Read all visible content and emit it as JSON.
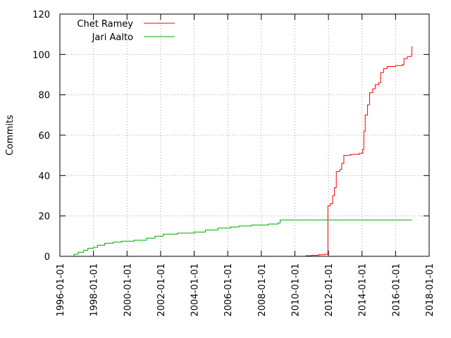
{
  "chart_data": {
    "type": "line",
    "title": "",
    "xlabel": "",
    "ylabel": "Commits",
    "x_type": "date",
    "xlim": [
      "1996-01-01",
      "2018-01-01"
    ],
    "ylim": [
      0,
      120
    ],
    "x_ticks": [
      "1996-01-01",
      "1998-01-01",
      "2000-01-01",
      "2002-01-01",
      "2004-01-01",
      "2006-01-01",
      "2008-01-01",
      "2010-01-01",
      "2012-01-01",
      "2014-01-01",
      "2016-01-01",
      "2018-01-01"
    ],
    "y_ticks": [
      0,
      20,
      40,
      60,
      80,
      100,
      120
    ],
    "grid": true,
    "legend_position": "top-left",
    "step": true,
    "series": [
      {
        "name": "Chet Ramey",
        "color": "#ff0000",
        "points": [
          [
            "2009-09-15",
            0
          ],
          [
            "2010-06-01",
            0
          ],
          [
            "2010-09-01",
            0.3
          ],
          [
            "2011-01-01",
            0.5
          ],
          [
            "2011-06-01",
            0.8
          ],
          [
            "2011-10-01",
            1
          ],
          [
            "2011-12-20",
            1
          ],
          [
            "2011-12-20",
            25
          ],
          [
            "2012-02-10",
            26
          ],
          [
            "2012-04-01",
            30
          ],
          [
            "2012-05-10",
            34
          ],
          [
            "2012-06-20",
            42
          ],
          [
            "2012-09-01",
            43
          ],
          [
            "2012-10-15",
            46
          ],
          [
            "2012-12-01",
            50
          ],
          [
            "2013-01-20",
            50
          ],
          [
            "2013-05-01",
            50.5
          ],
          [
            "2013-11-01",
            51
          ],
          [
            "2013-12-20",
            51
          ],
          [
            "2014-01-15",
            53
          ],
          [
            "2014-02-10",
            62
          ],
          [
            "2014-03-10",
            70
          ],
          [
            "2014-05-01",
            75
          ],
          [
            "2014-06-15",
            81
          ],
          [
            "2014-08-20",
            83
          ],
          [
            "2014-10-15",
            85
          ],
          [
            "2015-01-01",
            86
          ],
          [
            "2015-02-10",
            91
          ],
          [
            "2015-04-15",
            93
          ],
          [
            "2015-07-01",
            94
          ],
          [
            "2016-01-01",
            94.5
          ],
          [
            "2016-06-01",
            95
          ],
          [
            "2016-07-01",
            98
          ],
          [
            "2016-09-15",
            99
          ],
          [
            "2016-12-15",
            100
          ],
          [
            "2016-12-20",
            104
          ]
        ]
      },
      {
        "name": "Jari Aalto",
        "color": "#00aa00",
        "points": [
          [
            "1996-09-15",
            0
          ],
          [
            "1996-11-01",
            1
          ],
          [
            "1997-02-01",
            2
          ],
          [
            "1997-06-01",
            3
          ],
          [
            "1997-09-01",
            4
          ],
          [
            "1998-01-01",
            4.5
          ],
          [
            "1998-04-01",
            5.5
          ],
          [
            "1998-09-01",
            6.5
          ],
          [
            "1999-03-01",
            7
          ],
          [
            "1999-09-01",
            7.5
          ],
          [
            "2000-06-01",
            8
          ],
          [
            "2001-03-01",
            9
          ],
          [
            "2001-09-01",
            10
          ],
          [
            "2002-03-01",
            11
          ],
          [
            "2003-01-01",
            11.5
          ],
          [
            "2004-01-01",
            12
          ],
          [
            "2004-09-01",
            13
          ],
          [
            "2005-06-01",
            14
          ],
          [
            "2006-03-01",
            14.5
          ],
          [
            "2006-09-01",
            15
          ],
          [
            "2007-06-01",
            15.5
          ],
          [
            "2008-06-01",
            16
          ],
          [
            "2009-01-01",
            16.5
          ],
          [
            "2009-02-15",
            18
          ],
          [
            "2016-12-20",
            18
          ]
        ]
      }
    ]
  }
}
